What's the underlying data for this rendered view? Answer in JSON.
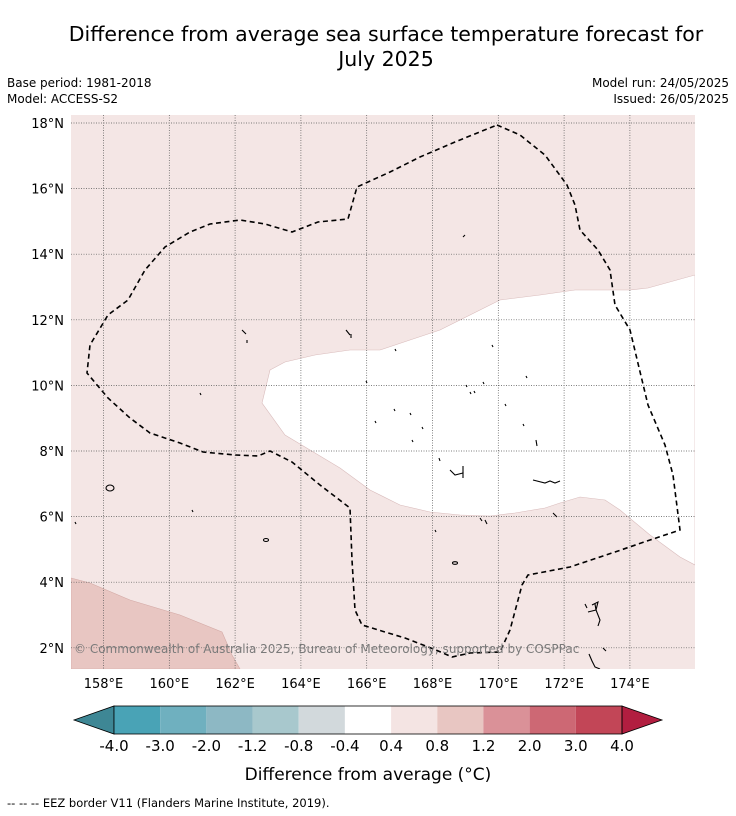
{
  "title_line1": "Difference from average sea surface temperature forecast for",
  "title_line2": "July 2025",
  "meta": {
    "base_period": "Base period: 1981-2018",
    "model": "Model: ACCESS-S2",
    "model_run": "Model run: 24/05/2025",
    "issued": "Issued: 26/05/2025"
  },
  "map": {
    "lon_ticks": [
      "158°E",
      "160°E",
      "162°E",
      "164°E",
      "166°E",
      "168°E",
      "170°E",
      "172°E",
      "174°E"
    ],
    "lat_ticks": [
      "18°N",
      "16°N",
      "14°N",
      "12°N",
      "10°N",
      "8°N",
      "6°N",
      "4°N",
      "2°N"
    ],
    "attribution": "© Commonwealth of Australia 2025, Bureau of Meteorology, supported by COSPPac",
    "dominant_anomaly_class": "0.4 to 0.8",
    "central_anomaly_class": "-0.4 to 0.4",
    "southwest_anomaly_class": "0.8 to 1.2"
  },
  "colorbar": {
    "labels": [
      "-4.0",
      "-3.0",
      "-2.0",
      "-1.2",
      "-0.8",
      "-0.4",
      "0.4",
      "0.8",
      "1.2",
      "2.0",
      "3.0",
      "4.0"
    ],
    "colors": [
      "#3e8795",
      "#49a3b6",
      "#6fb0bf",
      "#8db8c4",
      "#a8c8cd",
      "#d2d9dc",
      "#ffffff",
      "#f4e4e3",
      "#e8c6c2",
      "#da9198",
      "#cd6874",
      "#c24657",
      "#b21e40"
    ],
    "label": "Difference from average (°C)"
  },
  "legend_note": "--  --  -- EEZ border V11 (Flanders Marine Institute, 2019)."
}
